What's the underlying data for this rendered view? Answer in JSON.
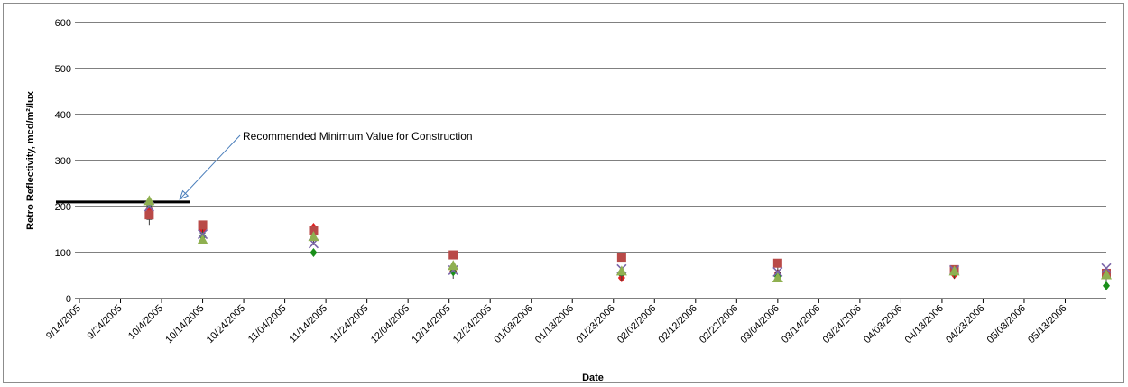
{
  "chart_data": {
    "type": "scatter",
    "xlabel": "Date",
    "ylabel": "Retro Reflectivity,  mcd/m²/lux",
    "ylim": [
      0,
      600
    ],
    "yticks": [
      0,
      100,
      200,
      300,
      400,
      500,
      600
    ],
    "xlim": [
      "2005-09-14",
      "2006-05-23"
    ],
    "xtick_labels": [
      "9/14/2005",
      "9/24/2005",
      "10/4/2005",
      "10/14/2005",
      "10/24/2005",
      "11/04/2005",
      "11/14/2005",
      "11/24/2005",
      "12/04/2005",
      "12/14/2005",
      "12/24/2005",
      "01/03/2006",
      "01/13/2006",
      "01/23/2006",
      "02/02/2006",
      "02/12/2006",
      "02/22/2006",
      "03/04/2006",
      "03/14/2006",
      "03/24/2006",
      "04/03/2006",
      "04/13/2006",
      "04/23/2006",
      "05/03/2006",
      "05/13/2006"
    ],
    "grid": "horizontal",
    "series": [
      {
        "marker": "diamond",
        "color": "#e02020",
        "points": [
          [
            "2005-10-01",
            195
          ],
          [
            "2005-10-14",
            150
          ],
          [
            "2005-11-10",
            155
          ],
          [
            "2005-12-14",
            60
          ],
          [
            "2006-01-24",
            45
          ],
          [
            "2006-03-03",
            55
          ],
          [
            "2006-04-15",
            52
          ],
          [
            "2006-05-22",
            58
          ]
        ]
      },
      {
        "marker": "plus",
        "color": "#404040",
        "points": [
          [
            "2005-10-01",
            172
          ],
          [
            "2005-10-14",
            142
          ],
          [
            "2005-11-10",
            128
          ],
          [
            "2005-12-14",
            55
          ],
          [
            "2006-01-24",
            50
          ],
          [
            "2006-03-03",
            56
          ],
          [
            "2006-04-15",
            55
          ],
          [
            "2006-05-22",
            48
          ]
        ]
      },
      {
        "marker": "square",
        "color": "#b94a48",
        "points": [
          [
            "2005-10-01",
            182
          ],
          [
            "2005-10-14",
            160
          ],
          [
            "2005-11-10",
            147
          ],
          [
            "2005-12-14",
            95
          ],
          [
            "2006-01-24",
            90
          ],
          [
            "2006-03-03",
            77
          ],
          [
            "2006-04-15",
            63
          ],
          [
            "2006-05-22",
            55
          ]
        ]
      },
      {
        "marker": "diamond",
        "color": "#1a8f1a",
        "points": [
          [
            "2005-10-01",
            205
          ],
          [
            "2005-10-14",
            135
          ],
          [
            "2005-11-10",
            100
          ],
          [
            "2005-12-14",
            58
          ],
          [
            "2006-01-24",
            58
          ],
          [
            "2006-03-03",
            48
          ],
          [
            "2006-04-15",
            57
          ],
          [
            "2006-05-22",
            28
          ]
        ]
      },
      {
        "marker": "x",
        "color": "#7a64a8",
        "points": [
          [
            "2005-10-01",
            200
          ],
          [
            "2005-10-14",
            140
          ],
          [
            "2005-11-10",
            120
          ],
          [
            "2005-12-14",
            62
          ],
          [
            "2006-01-24",
            64
          ],
          [
            "2006-03-03",
            58
          ],
          [
            "2006-04-15",
            62
          ],
          [
            "2006-05-22",
            66
          ]
        ]
      },
      {
        "marker": "triangle",
        "color": "#8fb050",
        "points": [
          [
            "2005-10-01",
            213
          ],
          [
            "2005-10-14",
            128
          ],
          [
            "2005-11-10",
            135
          ],
          [
            "2005-12-14",
            72
          ],
          [
            "2006-01-24",
            60
          ],
          [
            "2006-03-03",
            45
          ],
          [
            "2006-04-15",
            60
          ],
          [
            "2006-05-22",
            52
          ]
        ]
      }
    ],
    "reference_line": {
      "y": 210,
      "x_start": "2005-09-14",
      "x_end": "2005-10-11",
      "color": "#000000"
    },
    "annotation": {
      "text": "Recommended Minimum Value for Construction",
      "arrow_target": [
        "2005-10-08",
        210
      ]
    }
  }
}
